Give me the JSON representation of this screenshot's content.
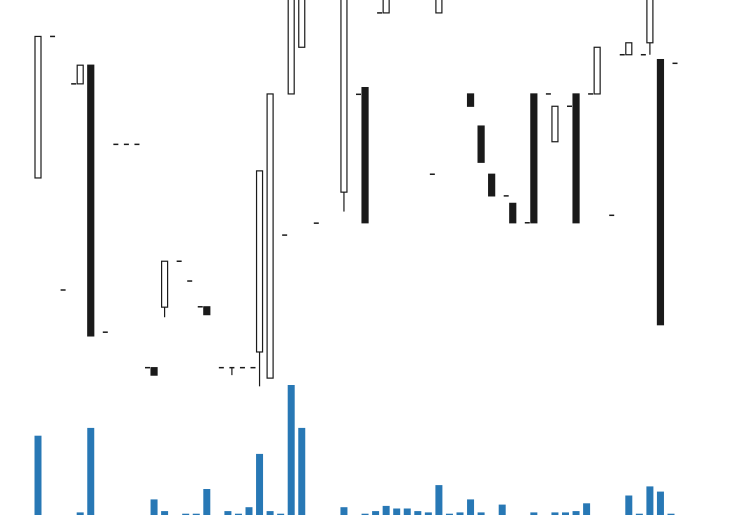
{
  "chart_data": {
    "type": "candlestick",
    "title": "",
    "xlabel": "",
    "ylabel": "",
    "grid": false,
    "legend": "none",
    "colors": {
      "up": "#ffffff",
      "down": "#1a1a1a",
      "outline": "#1a1a1a",
      "volume": "#2878b5"
    },
    "ohlc_ylim": [
      0,
      100
    ],
    "volume_ylim": [
      0,
      100
    ],
    "candles": [
      {
        "o": 53.3,
        "h": 91.2,
        "l": 53.3,
        "c": 91.2,
        "v": 61
      },
      {
        "o": 91.2,
        "h": 91.2,
        "l": 91.2,
        "c": 91.2,
        "v": 0
      },
      {
        "o": 23.3,
        "h": 23.3,
        "l": 23.3,
        "c": 23.3,
        "v": 0
      },
      {
        "o": 78.5,
        "h": 78.5,
        "l": 78.5,
        "c": 78.5,
        "v": 0
      },
      {
        "o": 78.5,
        "h": 83.5,
        "l": 78.5,
        "c": 83.5,
        "v": 2
      },
      {
        "o": 83.5,
        "h": 83.5,
        "l": 11.0,
        "c": 11.0,
        "v": 67
      },
      {
        "o": 12.0,
        "h": 12.0,
        "l": 12.0,
        "c": 12.0,
        "v": 0
      },
      {
        "o": 62.3,
        "h": 62.3,
        "l": 62.3,
        "c": 62.3,
        "v": 0
      },
      {
        "o": 62.3,
        "h": 62.3,
        "l": 62.3,
        "c": 62.3,
        "v": 0
      },
      {
        "o": 62.3,
        "h": 62.3,
        "l": 62.3,
        "c": 62.3,
        "v": 0
      },
      {
        "o": 2.5,
        "h": 2.5,
        "l": 2.5,
        "c": 2.5,
        "v": 0
      },
      {
        "o": 2.5,
        "h": 2.5,
        "l": 0.5,
        "c": 0.5,
        "v": 12
      },
      {
        "o": 18.7,
        "h": 31.0,
        "l": 16.0,
        "c": 31.0,
        "v": 3
      },
      {
        "o": 31.0,
        "h": 31.0,
        "l": 31.0,
        "c": 31.0,
        "v": 0
      },
      {
        "o": 25.7,
        "h": 25.7,
        "l": 25.7,
        "c": 25.7,
        "v": 1
      },
      {
        "o": 18.8,
        "h": 18.8,
        "l": 18.8,
        "c": 18.8,
        "v": 1
      },
      {
        "o": 18.8,
        "h": 18.8,
        "l": 16.7,
        "c": 16.7,
        "v": 20
      },
      {
        "o": 2.5,
        "h": 2.5,
        "l": 2.5,
        "c": 2.5,
        "v": 0
      },
      {
        "o": 2.5,
        "h": 2.5,
        "l": 0.5,
        "c": 2.5,
        "v": 3
      },
      {
        "o": 2.5,
        "h": 2.5,
        "l": 2.5,
        "c": 2.5,
        "v": 1
      },
      {
        "o": 2.5,
        "h": 2.5,
        "l": 2.5,
        "c": 2.5,
        "v": 6
      },
      {
        "o": 6.7,
        "h": 55.2,
        "l": -2.5,
        "c": 55.2,
        "v": 47
      },
      {
        "o": -0.3,
        "h": 75.8,
        "l": -0.3,
        "c": 75.8,
        "v": 3
      },
      {
        "o": 38.0,
        "h": 38.0,
        "l": 38.0,
        "c": 38.0,
        "v": 1
      },
      {
        "o": 75.8,
        "h": 120.0,
        "l": 75.8,
        "c": 120.0,
        "v": 100
      },
      {
        "o": 88.3,
        "h": 125.0,
        "l": 88.3,
        "c": 125.0,
        "v": 67
      },
      {
        "o": 41.2,
        "h": 41.2,
        "l": 41.2,
        "c": 41.2,
        "v": 0
      },
      {
        "o": 118.2,
        "h": 118.2,
        "l": 118.2,
        "c": 118.2,
        "v": 0
      },
      {
        "o": 106.3,
        "h": 106.3,
        "l": 106.3,
        "c": 106.3,
        "v": 0
      },
      {
        "o": 49.5,
        "h": 104.5,
        "l": 44.3,
        "c": 104.5,
        "v": 6
      },
      {
        "o": 75.7,
        "h": 75.7,
        "l": 75.7,
        "c": 75.7,
        "v": 0
      },
      {
        "o": 77.5,
        "h": 77.5,
        "l": 41.3,
        "c": 41.3,
        "v": 1
      },
      {
        "o": 97.5,
        "h": 97.5,
        "l": 97.5,
        "c": 97.5,
        "v": 3
      },
      {
        "o": 97.5,
        "h": 103.8,
        "l": 97.5,
        "c": 103.8,
        "v": 7
      },
      {
        "o": 105.0,
        "h": 105.0,
        "l": 105.0,
        "c": 105.0,
        "v": 5
      },
      {
        "o": 102.0,
        "h": 105.0,
        "l": 102.0,
        "c": 105.0,
        "v": 5
      },
      {
        "o": 102.0,
        "h": 105.0,
        "l": 102.0,
        "c": 105.0,
        "v": 3
      },
      {
        "o": 54.3,
        "h": 54.3,
        "l": 54.3,
        "c": 54.3,
        "v": 2
      },
      {
        "o": 97.5,
        "h": 104.0,
        "l": 97.5,
        "c": 104.0,
        "v": 23
      },
      {
        "o": 105.0,
        "h": 105.0,
        "l": 105.0,
        "c": 105.0,
        "v": 1
      },
      {
        "o": 105.0,
        "h": 105.0,
        "l": 105.0,
        "c": 105.0,
        "v": 2
      },
      {
        "o": 75.8,
        "h": 75.8,
        "l": 72.5,
        "c": 72.5,
        "v": 12
      },
      {
        "o": 67.2,
        "h": 67.2,
        "l": 57.5,
        "c": 57.5,
        "v": 2
      },
      {
        "o": 54.3,
        "h": 54.3,
        "l": 48.5,
        "c": 48.5,
        "v": 0
      },
      {
        "o": 48.5,
        "h": 48.5,
        "l": 48.5,
        "c": 48.5,
        "v": 8
      },
      {
        "o": 46.5,
        "h": 46.5,
        "l": 41.3,
        "c": 41.3,
        "v": 0
      },
      {
        "o": 41.3,
        "h": 41.3,
        "l": 41.3,
        "c": 41.3,
        "v": 0
      },
      {
        "o": 75.8,
        "h": 75.8,
        "l": 41.3,
        "c": 41.3,
        "v": 2
      },
      {
        "o": 75.8,
        "h": 75.8,
        "l": 75.8,
        "c": 75.8,
        "v": 0
      },
      {
        "o": 63.0,
        "h": 72.5,
        "l": 63.0,
        "c": 72.5,
        "v": 2
      },
      {
        "o": 72.5,
        "h": 72.5,
        "l": 72.5,
        "c": 72.5,
        "v": 2
      },
      {
        "o": 75.8,
        "h": 75.8,
        "l": 41.3,
        "c": 41.3,
        "v": 3
      },
      {
        "o": 75.8,
        "h": 75.8,
        "l": 75.8,
        "c": 75.8,
        "v": 9
      },
      {
        "o": 75.8,
        "h": 88.3,
        "l": 75.8,
        "c": 88.3,
        "v": 0
      },
      {
        "o": 43.3,
        "h": 43.3,
        "l": 43.3,
        "c": 43.3,
        "v": 0
      },
      {
        "o": 86.3,
        "h": 86.3,
        "l": 86.3,
        "c": 86.3,
        "v": 0
      },
      {
        "o": 86.3,
        "h": 89.5,
        "l": 86.3,
        "c": 89.5,
        "v": 15
      },
      {
        "o": 86.3,
        "h": 86.3,
        "l": 86.3,
        "c": 86.3,
        "v": 1
      },
      {
        "o": 89.5,
        "h": 104.5,
        "l": 86.3,
        "c": 104.5,
        "v": 22
      },
      {
        "o": 85.0,
        "h": 85.0,
        "l": 14.0,
        "c": 14.0,
        "v": 18
      },
      {
        "o": 84.0,
        "h": 84.0,
        "l": 84.0,
        "c": 84.0,
        "v": 1
      }
    ]
  }
}
